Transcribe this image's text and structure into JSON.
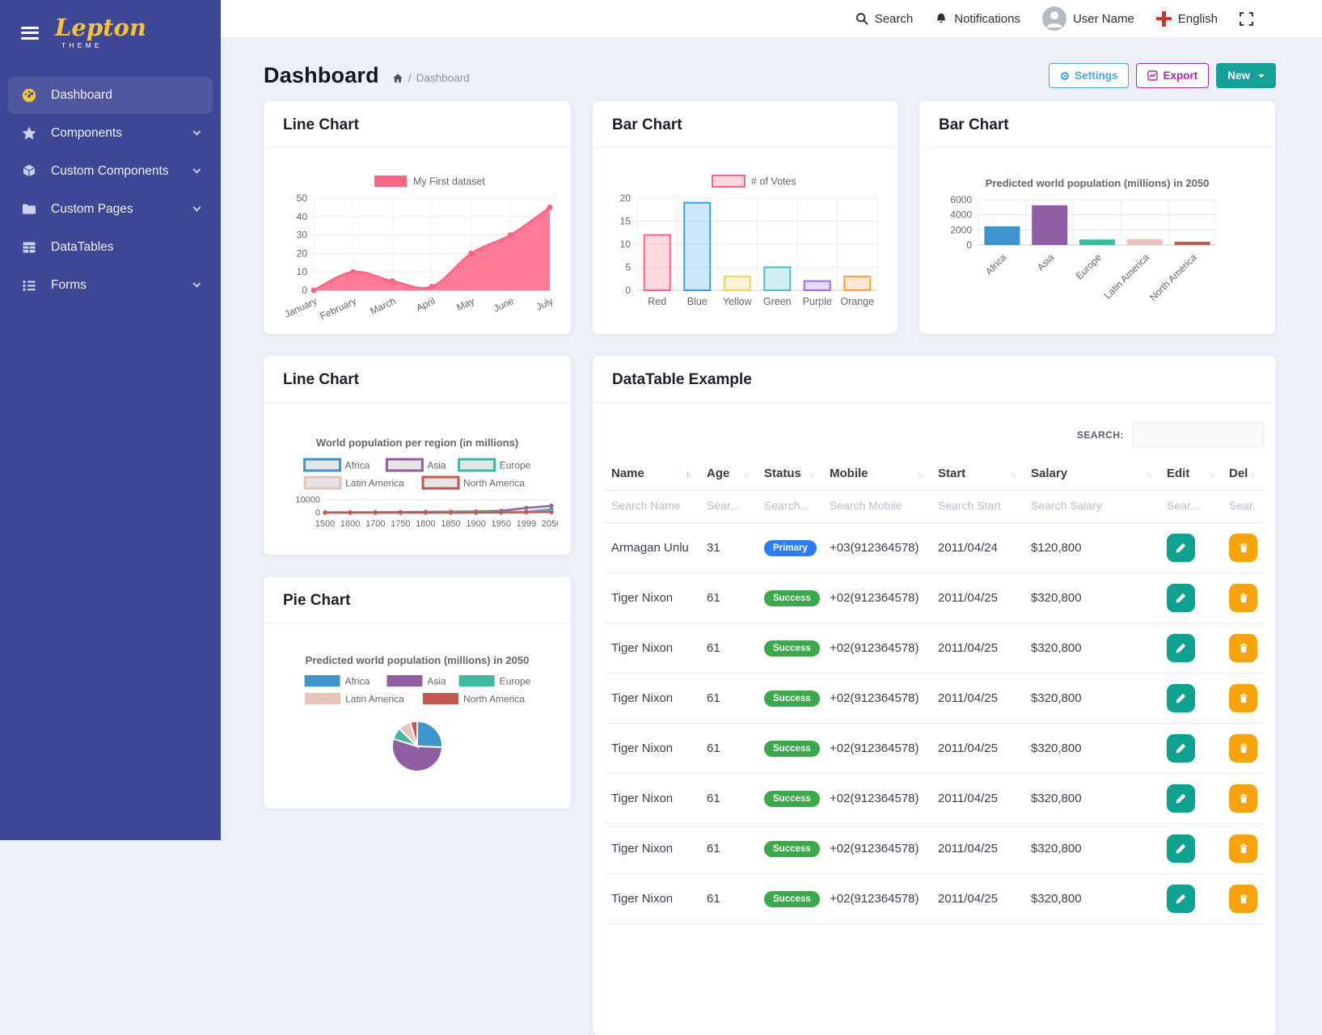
{
  "brand": {
    "name": "Lepton",
    "sub": "THEME"
  },
  "sidebar": {
    "items": [
      {
        "label": "Dashboard",
        "active": true,
        "chevron": false
      },
      {
        "label": "Components",
        "active": false,
        "chevron": true
      },
      {
        "label": "Custom Components",
        "active": false,
        "chevron": true
      },
      {
        "label": "Custom Pages",
        "active": false,
        "chevron": true
      },
      {
        "label": "DataTables",
        "active": false,
        "chevron": false
      },
      {
        "label": "Forms",
        "active": false,
        "chevron": true
      }
    ]
  },
  "topbar": {
    "search_label": "Search",
    "notifications_label": "Notifications",
    "user_name": "User Name",
    "language": "English"
  },
  "page": {
    "title": "Dashboard",
    "breadcrumb_current": "Dashboard",
    "settings_label": "Settings",
    "export_label": "Export",
    "new_label": "New"
  },
  "cards": {
    "line1_title": "Line Chart",
    "bar1_title": "Bar Chart",
    "bar2_title": "Bar Chart",
    "line2_title": "Line Chart",
    "pie_title": "Pie Chart",
    "datatable_title": "DataTable Example"
  },
  "colors": {
    "sidebar": "#3e4796",
    "logo_yellow": "#f6c334",
    "primary_pill": "#2a7df5",
    "success_pill": "#3aa84b",
    "edit_button": "#0ca28e",
    "delete_button": "#f8a20c",
    "accent_blue": "#4aa0f9",
    "accent_purple": "#a62ab8",
    "accent_teal": "#13a197"
  },
  "chart_data": [
    {
      "id": "line1",
      "type": "area",
      "legend_label": "My First dataset",
      "categories": [
        "January",
        "February",
        "March",
        "April",
        "May",
        "June",
        "July"
      ],
      "values": [
        0,
        10,
        5,
        2,
        20,
        30,
        45
      ],
      "ylim": [
        0,
        50
      ],
      "yticks": [
        0,
        10,
        20,
        30,
        40,
        50
      ],
      "color": "#ff6384"
    },
    {
      "id": "bar1",
      "type": "bar",
      "legend_label": "# of Votes",
      "categories": [
        "Red",
        "Blue",
        "Yellow",
        "Green",
        "Purple",
        "Orange"
      ],
      "values": [
        12,
        19,
        3,
        5,
        2,
        3
      ],
      "border_colors": [
        "#ff6384",
        "#36a2eb",
        "#ffce56",
        "#4bc0c0",
        "#9966ff",
        "#ff9f40"
      ],
      "fill_colors": [
        "rgba(255,99,132,0.25)",
        "rgba(54,162,235,0.25)",
        "rgba(255,206,86,0.25)",
        "rgba(75,192,192,0.25)",
        "rgba(153,102,255,0.25)",
        "rgba(255,159,64,0.25)"
      ],
      "ylim": [
        0,
        20
      ],
      "yticks": [
        0,
        5,
        10,
        15,
        20
      ]
    },
    {
      "id": "bar2",
      "type": "bar",
      "title": "Predicted world population (millions) in 2050",
      "categories": [
        "Africa",
        "Asia",
        "Europe",
        "Latin America",
        "North America"
      ],
      "values": [
        2478,
        5267,
        734,
        784,
        433
      ],
      "colors": [
        "#3e95cd",
        "#8e5ea2",
        "#3cba9f",
        "#e8c3b9",
        "#c45850"
      ],
      "ylim": [
        0,
        6000
      ],
      "yticks": [
        0,
        2000,
        4000,
        6000
      ],
      "label_rotation": -45
    },
    {
      "id": "line2",
      "type": "line",
      "title": "World population per region (in millions)",
      "categories": [
        "1500",
        "1600",
        "1700",
        "1750",
        "1800",
        "1850",
        "1900",
        "1950",
        "1999",
        "2050"
      ],
      "series": [
        {
          "name": "Africa",
          "color": "#3e95cd",
          "values": [
            86,
            114,
            106,
            106,
            107,
            111,
            133,
            221,
            783,
            2478
          ]
        },
        {
          "name": "Asia",
          "color": "#8e5ea2",
          "values": [
            282,
            350,
            411,
            502,
            635,
            809,
            947,
            1402,
            3634,
            5268
          ]
        },
        {
          "name": "Europe",
          "color": "#3cba9f",
          "values": [
            168,
            170,
            178,
            190,
            203,
            276,
            408,
            547,
            729,
            628
          ]
        },
        {
          "name": "Latin America",
          "color": "#e8c3b9",
          "values": [
            40,
            20,
            10,
            16,
            24,
            38,
            74,
            167,
            508,
            784
          ]
        },
        {
          "name": "North America",
          "color": "#c45850",
          "values": [
            6,
            3,
            2,
            2,
            7,
            26,
            82,
            172,
            312,
            433
          ]
        }
      ],
      "ylim": [
        0,
        10000
      ],
      "yticks": [
        0,
        10000
      ]
    },
    {
      "id": "pie",
      "type": "pie",
      "title": "Predicted world population (millions) in 2050",
      "labels": [
        "Africa",
        "Asia",
        "Europe",
        "Latin America",
        "North America"
      ],
      "values": [
        2478,
        5267,
        734,
        784,
        433
      ],
      "colors": [
        "#3e95cd",
        "#8e5ea2",
        "#3cba9f",
        "#e8c3b9",
        "#c45850"
      ]
    }
  ],
  "datatable": {
    "search_label": "SEARCH:",
    "columns": [
      {
        "label": "Name",
        "filter": "Search Name",
        "sorted": "asc"
      },
      {
        "label": "Age",
        "filter": "Sear..."
      },
      {
        "label": "Status",
        "filter": "Search..."
      },
      {
        "label": "Mobile",
        "filter": "Search Mobile"
      },
      {
        "label": "Start",
        "filter": "Search Start"
      },
      {
        "label": "Salary",
        "filter": "Search Salary"
      },
      {
        "label": "Edit",
        "filter": "Sear..."
      },
      {
        "label": "Del",
        "filter": "Sear..."
      }
    ],
    "rows": [
      {
        "name": "Armagan Unlu",
        "age": "31",
        "status": "Primary",
        "mobile": "+03(912364578)",
        "start": "2011/04/24",
        "salary": "$120,800"
      },
      {
        "name": "Tiger Nixon",
        "age": "61",
        "status": "Success",
        "mobile": "+02(912364578)",
        "start": "2011/04/25",
        "salary": "$320,800"
      },
      {
        "name": "Tiger Nixon",
        "age": "61",
        "status": "Success",
        "mobile": "+02(912364578)",
        "start": "2011/04/25",
        "salary": "$320,800"
      },
      {
        "name": "Tiger Nixon",
        "age": "61",
        "status": "Success",
        "mobile": "+02(912364578)",
        "start": "2011/04/25",
        "salary": "$320,800"
      },
      {
        "name": "Tiger Nixon",
        "age": "61",
        "status": "Success",
        "mobile": "+02(912364578)",
        "start": "2011/04/25",
        "salary": "$320,800"
      },
      {
        "name": "Tiger Nixon",
        "age": "61",
        "status": "Success",
        "mobile": "+02(912364578)",
        "start": "2011/04/25",
        "salary": "$320,800"
      },
      {
        "name": "Tiger Nixon",
        "age": "61",
        "status": "Success",
        "mobile": "+02(912364578)",
        "start": "2011/04/25",
        "salary": "$320,800"
      },
      {
        "name": "Tiger Nixon",
        "age": "61",
        "status": "Success",
        "mobile": "+02(912364578)",
        "start": "2011/04/25",
        "salary": "$320,800"
      }
    ]
  }
}
